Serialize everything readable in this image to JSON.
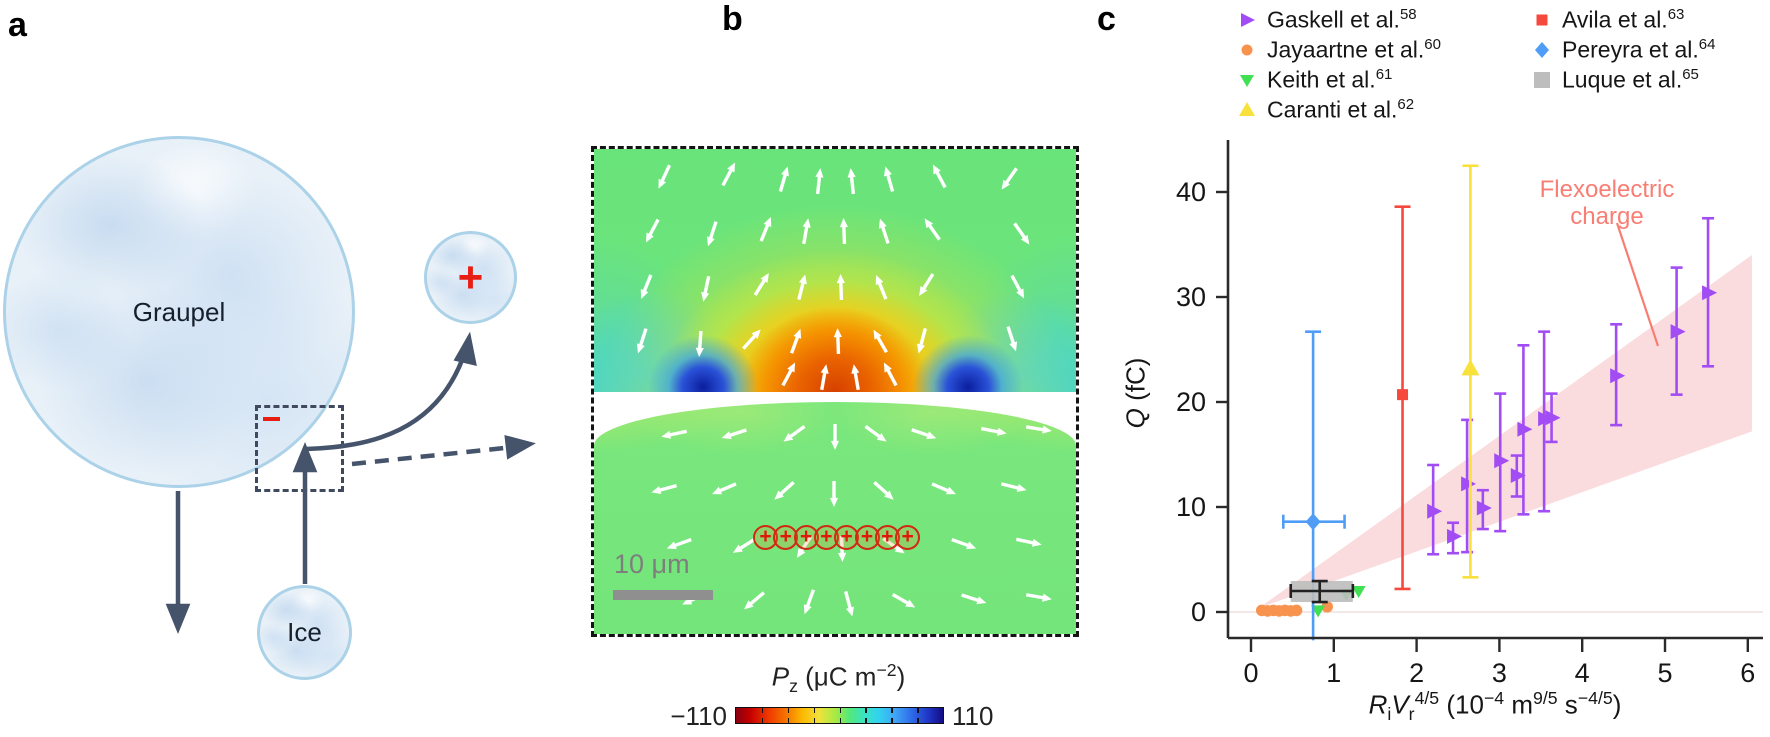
{
  "panel_a": {
    "label": "a",
    "graupel_label": "Graupel",
    "ice_label": "Ice",
    "plus_sign": "+",
    "minus_sign": "−"
  },
  "panel_b": {
    "label": "b",
    "scale_bar_label": "10 μm",
    "plus_sign": "+",
    "num_plus_charges": 8,
    "colorbar": {
      "title_tokens": [
        [
          "i",
          "P"
        ],
        [
          "sub",
          "z"
        ],
        [
          "t",
          " (μC m"
        ],
        [
          "sup",
          "−2"
        ],
        [
          "t",
          ")"
        ]
      ],
      "min": "−110",
      "max": "110"
    },
    "polarization_arrows_upper": [
      [
        70,
        28,
        245
      ],
      [
        135,
        25,
        62
      ],
      [
        190,
        30,
        74
      ],
      [
        225,
        32,
        84
      ],
      [
        258,
        32,
        96
      ],
      [
        295,
        30,
        106
      ],
      [
        345,
        27,
        118
      ],
      [
        415,
        30,
        235
      ],
      [
        58,
        82,
        242
      ],
      [
        118,
        85,
        252
      ],
      [
        172,
        80,
        68
      ],
      [
        212,
        82,
        80
      ],
      [
        250,
        82,
        92
      ],
      [
        290,
        82,
        108
      ],
      [
        338,
        80,
        125
      ],
      [
        428,
        85,
        305
      ],
      [
        52,
        138,
        248
      ],
      [
        112,
        140,
        258
      ],
      [
        168,
        135,
        58
      ],
      [
        208,
        138,
        76
      ],
      [
        247,
        138,
        92
      ],
      [
        287,
        138,
        112
      ],
      [
        332,
        136,
        238
      ],
      [
        424,
        138,
        298
      ],
      [
        48,
        192,
        252
      ],
      [
        106,
        195,
        266
      ],
      [
        158,
        190,
        48
      ],
      [
        202,
        192,
        70
      ],
      [
        244,
        192,
        92
      ],
      [
        286,
        192,
        120
      ],
      [
        328,
        192,
        255
      ],
      [
        418,
        190,
        288
      ],
      [
        195,
        225,
        62
      ],
      [
        230,
        228,
        80
      ],
      [
        262,
        228,
        100
      ],
      [
        296,
        225,
        118
      ]
    ],
    "polarization_arrows_lower": [
      [
        80,
        285,
        192
      ],
      [
        140,
        285,
        198
      ],
      [
        200,
        285,
        216
      ],
      [
        241,
        288,
        270
      ],
      [
        282,
        285,
        324
      ],
      [
        330,
        285,
        341
      ],
      [
        400,
        282,
        349
      ],
      [
        445,
        280,
        351
      ],
      [
        70,
        340,
        195
      ],
      [
        130,
        340,
        203
      ],
      [
        190,
        342,
        222
      ],
      [
        240,
        345,
        270
      ],
      [
        290,
        342,
        318
      ],
      [
        350,
        340,
        337
      ],
      [
        420,
        338,
        346
      ],
      [
        85,
        395,
        200
      ],
      [
        150,
        397,
        212
      ],
      [
        210,
        398,
        237
      ],
      [
        248,
        400,
        272
      ],
      [
        300,
        397,
        325
      ],
      [
        370,
        395,
        340
      ],
      [
        435,
        393,
        348
      ],
      [
        100,
        450,
        205
      ],
      [
        160,
        452,
        220
      ],
      [
        215,
        453,
        250
      ],
      [
        255,
        455,
        285
      ],
      [
        310,
        452,
        330
      ],
      [
        380,
        450,
        342
      ],
      [
        445,
        448,
        350
      ]
    ]
  },
  "panel_c": {
    "label": "c",
    "ylabel_tokens": [
      [
        "i",
        "Q"
      ],
      [
        "t",
        " (fC)"
      ]
    ],
    "xlabel_tokens": [
      [
        "i",
        "R"
      ],
      [
        "sub",
        "i"
      ],
      [
        "i",
        "V"
      ],
      [
        "sub",
        "r"
      ],
      [
        "sup",
        "4/5"
      ],
      [
        "t",
        " (10"
      ],
      [
        "sup",
        "−4"
      ],
      [
        "t",
        " m"
      ],
      [
        "sup",
        "9/5"
      ],
      [
        "t",
        " s"
      ],
      [
        "sup",
        "−4/5"
      ],
      [
        "t",
        ")"
      ]
    ],
    "annotation": {
      "line1": "Flexoelectric",
      "line2": "charge",
      "color": "#f87e74"
    }
  },
  "chart_data": {
    "type": "scatter",
    "xlabel": "RiVr^4/5 (10^-4 m^9/5 s^-4/5)",
    "ylabel": "Q (fC)",
    "xlim": [
      -0.28,
      6.2
    ],
    "ylim": [
      -3,
      45
    ],
    "xticks": [
      0,
      1,
      2,
      3,
      4,
      5,
      6
    ],
    "yticks": [
      0,
      10,
      20,
      30,
      40
    ],
    "grid": false,
    "legend_position": "top",
    "band": {
      "label": "Flexoelectric charge",
      "color": "#fadbde",
      "vertices_xy": [
        [
          0.1,
          0.4
        ],
        [
          6.05,
          34.0
        ],
        [
          6.05,
          17.2
        ]
      ]
    },
    "series": [
      {
        "name": "Gaskell et al.",
        "ref": "58",
        "marker": "triangle-right",
        "color": "#a24df3",
        "points": [
          {
            "x": 2.2,
            "y": 9.6,
            "ylo": 5.5,
            "yhi": 14.0
          },
          {
            "x": 2.44,
            "y": 7.2,
            "ylo": 5.6,
            "yhi": 8.5
          },
          {
            "x": 2.61,
            "y": 12.2,
            "ylo": 5.7,
            "yhi": 18.3
          },
          {
            "x": 2.8,
            "y": 9.9,
            "ylo": 7.9,
            "yhi": 11.6
          },
          {
            "x": 3.01,
            "y": 14.4,
            "ylo": 7.7,
            "yhi": 20.8
          },
          {
            "x": 3.21,
            "y": 13.0,
            "ylo": 11.0,
            "yhi": 14.9
          },
          {
            "x": 3.29,
            "y": 17.4,
            "ylo": 9.3,
            "yhi": 25.4
          },
          {
            "x": 3.54,
            "y": 18.4,
            "ylo": 9.6,
            "yhi": 26.7
          },
          {
            "x": 3.63,
            "y": 18.5,
            "ylo": 16.2,
            "yhi": 20.8
          },
          {
            "x": 4.41,
            "y": 22.5,
            "ylo": 17.8,
            "yhi": 27.4
          },
          {
            "x": 5.14,
            "y": 26.7,
            "ylo": 20.7,
            "yhi": 32.8
          },
          {
            "x": 5.52,
            "y": 30.4,
            "ylo": 23.4,
            "yhi": 37.5
          }
        ]
      },
      {
        "name": "Jayaartne et al.",
        "ref": "60",
        "marker": "circle",
        "color": "#f8934f",
        "points": [
          {
            "x": 0.13,
            "y": 0.15
          },
          {
            "x": 0.2,
            "y": 0.1
          },
          {
            "x": 0.27,
            "y": 0.15
          },
          {
            "x": 0.34,
            "y": 0.1
          },
          {
            "x": 0.41,
            "y": 0.15
          },
          {
            "x": 0.48,
            "y": 0.1
          },
          {
            "x": 0.55,
            "y": 0.15
          },
          {
            "x": 0.92,
            "y": 0.5
          }
        ]
      },
      {
        "name": "Keith et al.",
        "ref": "61",
        "marker": "triangle-down",
        "color": "#41e052",
        "points": [
          {
            "x": 0.81,
            "y": 0.15
          },
          {
            "x": 1.15,
            "y": 1.7
          },
          {
            "x": 1.3,
            "y": 2.0
          }
        ]
      },
      {
        "name": "Caranti et al.",
        "ref": "62",
        "marker": "triangle-up",
        "color": "#f8e13b",
        "points": [
          {
            "x": 2.65,
            "y": 23.2,
            "ylo": 3.3,
            "yhi": 42.5
          }
        ]
      },
      {
        "name": "Avila et al.",
        "ref": "63",
        "marker": "square",
        "color": "#f5493d",
        "points": [
          {
            "x": 1.83,
            "y": 20.7,
            "ylo": 2.2,
            "yhi": 38.6
          }
        ]
      },
      {
        "name": "Pereyra et al.",
        "ref": "64",
        "marker": "diamond",
        "color": "#4f9df7",
        "points": [
          {
            "x": 0.75,
            "y": 8.6,
            "ylo": -2.7,
            "yhi": 26.7,
            "xlo": 0.39,
            "xhi": 1.13
          }
        ]
      },
      {
        "name": "Luque et al.",
        "ref": "65",
        "marker": "box",
        "color": "#bdbdbd",
        "points": [
          {
            "x": 0.83,
            "y": 2.0,
            "ylo": 0.95,
            "yhi": 2.95,
            "xlo": 0.48,
            "xhi": 1.23,
            "box": {
              "x1": 0.48,
              "x2": 1.23,
              "y1": 0.95,
              "y2": 2.95
            }
          }
        ]
      }
    ]
  }
}
